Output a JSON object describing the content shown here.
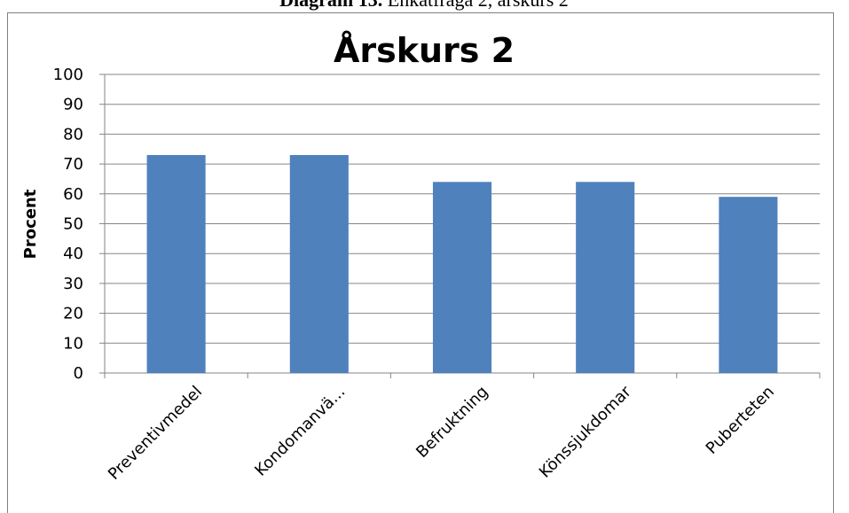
{
  "caption": {
    "label": "Diagram 13.",
    "text": "Enkätfråga 2, årskurs 2"
  },
  "chart_data": {
    "type": "bar",
    "title": "Årskurs 2",
    "y_label": "Procent",
    "categories": [
      "Preventivmedel",
      "Kondomanvä...",
      "Befruktning",
      "Könssjukdomar",
      "Puberteten"
    ],
    "values": [
      73,
      73,
      64,
      64,
      59
    ],
    "color": "#4f81bd",
    "ylim": [
      0,
      100
    ],
    "yticks": [
      0,
      10,
      20,
      30,
      40,
      50,
      60,
      70,
      80,
      90,
      100
    ],
    "grid": true
  }
}
